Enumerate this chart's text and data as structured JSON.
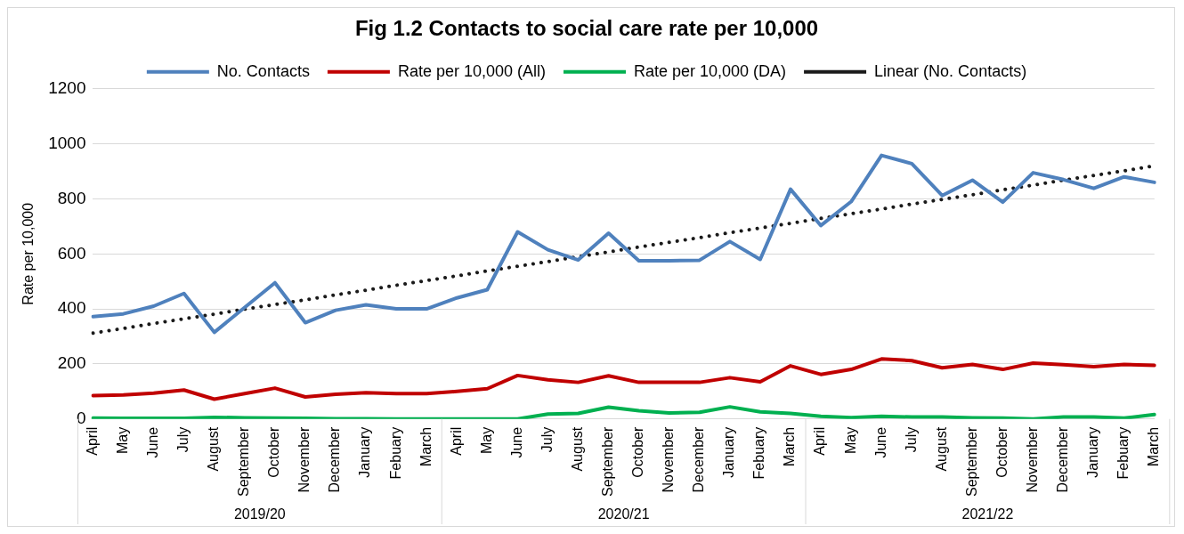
{
  "chart_data": {
    "type": "line",
    "title": "Fig 1.2 Contacts to social care rate per 10,000",
    "ylabel": "Rate per 10,000",
    "categories": [
      "April",
      "May",
      "June",
      "July",
      "August",
      "September",
      "October",
      "November",
      "December",
      "January",
      "Febuary",
      "March",
      "April",
      "May",
      "June",
      "July",
      "August",
      "September",
      "October",
      "November",
      "December",
      "January",
      "Febuary",
      "March",
      "April",
      "May",
      "June",
      "July",
      "August",
      "September",
      "October",
      "November",
      "December",
      "January",
      "Febuary",
      "March"
    ],
    "series": [
      {
        "name": "No. Contacts",
        "color": "#4f81bd",
        "values": [
          372,
          382,
          410,
          456,
          315,
          405,
          495,
          350,
          395,
          415,
          400,
          400,
          440,
          470,
          680,
          615,
          578,
          675,
          575,
          575,
          577,
          645,
          580,
          835,
          703,
          790,
          958,
          928,
          812,
          868,
          788,
          895,
          870,
          838,
          880,
          860
        ]
      },
      {
        "name": "Rate per 10,000 (All)",
        "color": "#c00000",
        "values": [
          85,
          87,
          94,
          105,
          72,
          92,
          112,
          80,
          90,
          95,
          92,
          92,
          100,
          110,
          158,
          142,
          133,
          157,
          133,
          133,
          133,
          150,
          135,
          193,
          162,
          180,
          218,
          212,
          186,
          198,
          180,
          203,
          197,
          190,
          198,
          195
        ]
      },
      {
        "name": "Rate per 10,000 (DA)",
        "color": "#00b050",
        "values": [
          3,
          2,
          2,
          2,
          6,
          4,
          3,
          2,
          1,
          1,
          0,
          0,
          0,
          0,
          0,
          18,
          20,
          43,
          30,
          22,
          24,
          44,
          26,
          20,
          10,
          5,
          10,
          7,
          7,
          4,
          3,
          0,
          7,
          7,
          3,
          16
        ]
      },
      {
        "name": "Linear (No. Contacts)",
        "color": "#1a1a1a",
        "line_style": "dotted",
        "values": [
          312,
          329,
          347,
          364,
          381,
          399,
          416,
          433,
          451,
          468,
          486,
          503,
          520,
          538,
          555,
          572,
          590,
          607,
          625,
          642,
          659,
          677,
          694,
          711,
          729,
          746,
          763,
          781,
          798,
          815,
          833,
          850,
          868,
          885,
          902,
          920
        ]
      }
    ],
    "annotations": [
      "2019/20",
      "2020/21",
      "2021/22"
    ],
    "ylim": [
      0,
      1200
    ],
    "yticks": [
      0,
      200,
      400,
      600,
      800,
      1000,
      1200
    ],
    "grid": "y",
    "legend": "top",
    "marker": "none"
  }
}
